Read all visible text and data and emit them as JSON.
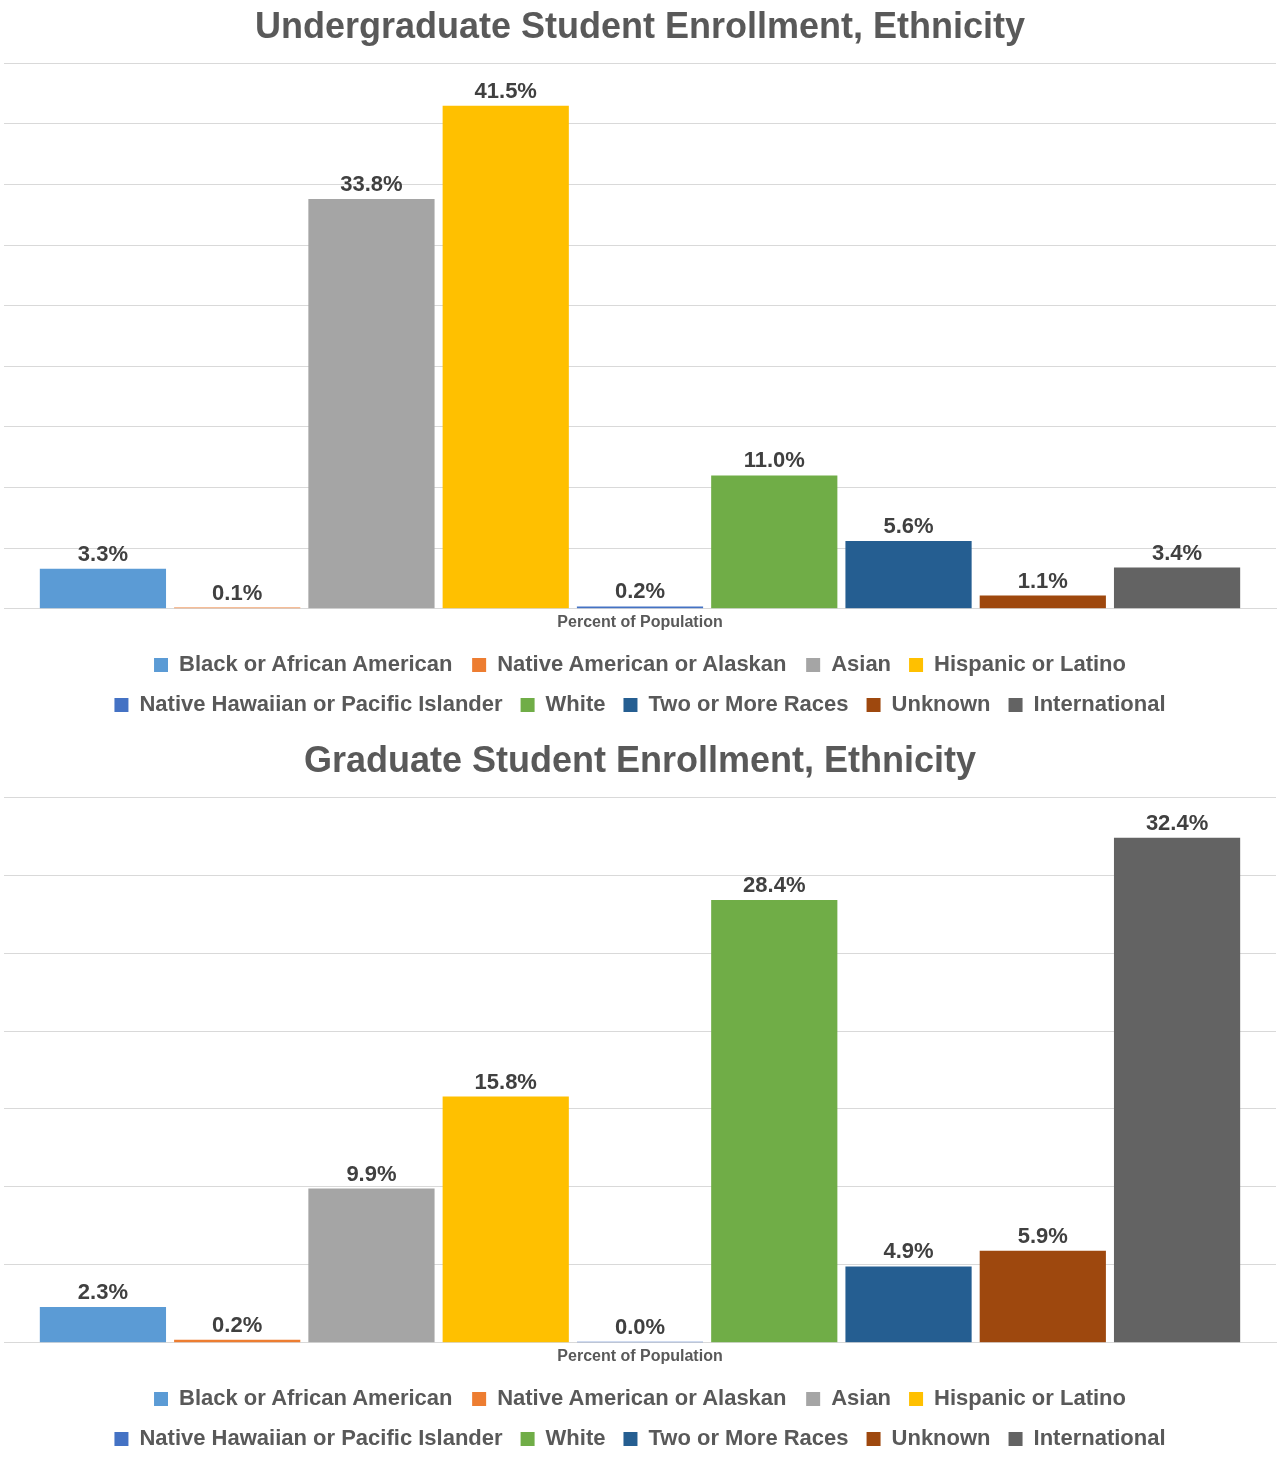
{
  "chart_data": [
    {
      "type": "bar",
      "title": "Undergraduate Student Enrollment, Ethnicity",
      "xlabel": "Percent of Population",
      "categories": [
        null
      ],
      "ylim": [
        0,
        45
      ],
      "grid": "y",
      "tick_labels": false,
      "legend": "bottom",
      "series": [
        {
          "name": "Black or African American",
          "color": "#5b9bd5",
          "values": [
            3.3
          ],
          "value_labels": [
            "3.3%"
          ]
        },
        {
          "name": "Native American or Alaskan",
          "color": "#ed7d31",
          "values": [
            0.1
          ],
          "value_labels": [
            "0.1%"
          ]
        },
        {
          "name": "Asian",
          "color": "#a5a5a5",
          "values": [
            33.8
          ],
          "value_labels": [
            "33.8%"
          ]
        },
        {
          "name": "Hispanic or Latino",
          "color": "#ffc000",
          "values": [
            41.5
          ],
          "value_labels": [
            "41.5%"
          ]
        },
        {
          "name": "Native Hawaiian or Pacific Islander",
          "color": "#4472c4",
          "values": [
            0.2
          ],
          "value_labels": [
            "0.2%"
          ]
        },
        {
          "name": "White",
          "color": "#70ad47",
          "values": [
            11.0
          ],
          "value_labels": [
            "11.0%"
          ]
        },
        {
          "name": "Two or More Races",
          "color": "#255e91",
          "values": [
            5.6
          ],
          "value_labels": [
            "5.6%"
          ]
        },
        {
          "name": "Unknown",
          "color": "#9e480e",
          "values": [
            1.1
          ],
          "value_labels": [
            "1.1%"
          ]
        },
        {
          "name": "International",
          "color": "#636363",
          "values": [
            3.4
          ],
          "value_labels": [
            "3.4%"
          ]
        }
      ]
    },
    {
      "type": "bar",
      "title": "Graduate Student Enrollment, Ethnicity",
      "xlabel": "Percent of Population",
      "categories": [
        null
      ],
      "ylim": [
        0,
        35
      ],
      "grid": "y",
      "tick_labels": false,
      "legend": "bottom",
      "series": [
        {
          "name": "Black or African American",
          "color": "#5b9bd5",
          "values": [
            2.3
          ],
          "value_labels": [
            "2.3%"
          ]
        },
        {
          "name": "Native American or Alaskan",
          "color": "#ed7d31",
          "values": [
            0.2
          ],
          "value_labels": [
            "0.2%"
          ]
        },
        {
          "name": "Asian",
          "color": "#a5a5a5",
          "values": [
            9.9
          ],
          "value_labels": [
            "9.9%"
          ]
        },
        {
          "name": "Hispanic or Latino",
          "color": "#ffc000",
          "values": [
            15.8
          ],
          "value_labels": [
            "15.8%"
          ]
        },
        {
          "name": "Native Hawaiian or Pacific Islander",
          "color": "#4472c4",
          "values": [
            0.0
          ],
          "value_labels": [
            "0.0%"
          ]
        },
        {
          "name": "White",
          "color": "#70ad47",
          "values": [
            28.4
          ],
          "value_labels": [
            "28.4%"
          ]
        },
        {
          "name": "Two or More Races",
          "color": "#255e91",
          "values": [
            4.9
          ],
          "value_labels": [
            "4.9%"
          ]
        },
        {
          "name": "Unknown",
          "color": "#9e480e",
          "values": [
            5.9
          ],
          "value_labels": [
            "5.9%"
          ]
        },
        {
          "name": "International",
          "color": "#636363",
          "values": [
            32.4
          ],
          "value_labels": [
            "32.4%"
          ]
        }
      ]
    }
  ]
}
